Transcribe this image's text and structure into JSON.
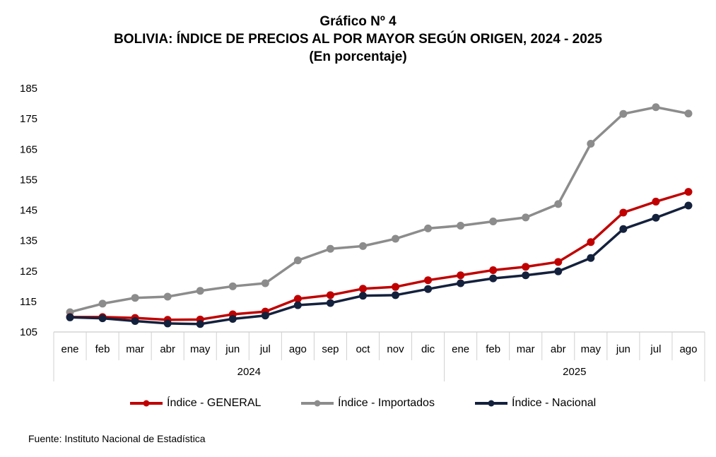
{
  "chart_data": {
    "type": "line",
    "title": "Gráfico Nº 4",
    "subtitle": "BOLIVIA: ÍNDICE DE PRECIOS AL POR MAYOR SEGÚN ORIGEN, 2024 - 2025",
    "note": "(En porcentaje)",
    "xlabel": "",
    "ylabel": "",
    "ylim": [
      105,
      185
    ],
    "yticks": [
      105,
      115,
      125,
      135,
      145,
      155,
      165,
      175,
      185
    ],
    "grid": false,
    "legend_position": "bottom",
    "categories": [
      "ene",
      "feb",
      "mar",
      "abr",
      "may",
      "jun",
      "jul",
      "ago",
      "sep",
      "oct",
      "nov",
      "dic",
      "ene",
      "feb",
      "mar",
      "abr",
      "may",
      "jun",
      "jul",
      "ago"
    ],
    "groups": [
      {
        "label": "2024",
        "start": 0,
        "end": 11
      },
      {
        "label": "2025",
        "start": 12,
        "end": 19
      }
    ],
    "series": [
      {
        "name": "Índice - GENERAL",
        "color": "#C00000",
        "values": [
          109.9,
          109.9,
          109.6,
          109.0,
          109.1,
          110.8,
          111.7,
          115.9,
          117.1,
          119.2,
          119.8,
          122.0,
          123.6,
          125.3,
          126.4,
          128.0,
          134.5,
          144.2,
          147.8,
          151.0
        ]
      },
      {
        "name": "Índice - Importados",
        "color": "#8C8C8C",
        "values": [
          111.5,
          114.3,
          116.2,
          116.6,
          118.5,
          120.0,
          121.0,
          128.5,
          132.3,
          133.2,
          135.6,
          139.0,
          139.9,
          141.3,
          142.6,
          147.0,
          166.8,
          176.6,
          178.8,
          176.7
        ]
      },
      {
        "name": "Índice - Nacional",
        "color": "#14213D",
        "values": [
          109.8,
          109.5,
          108.6,
          107.8,
          107.6,
          109.3,
          110.4,
          113.8,
          114.5,
          116.9,
          117.1,
          119.1,
          121.0,
          122.6,
          123.6,
          124.9,
          129.3,
          138.8,
          142.5,
          146.5
        ]
      }
    ]
  },
  "source": "Fuente: Instituto Nacional de Estadística"
}
